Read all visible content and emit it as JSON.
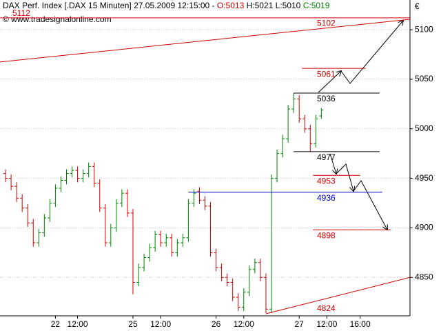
{
  "chart_data": {
    "type": "ohlc",
    "header": {
      "title": "DAX Perf. Index [.DAX  15 Minuten] 27.05.2009 12:15:00 -",
      "open": "O:5013",
      "high": "H:5021",
      "low": "L:5010",
      "close": "C:5019"
    },
    "copyright": "© www.tradesignalonline.com",
    "currency": "€",
    "up_color": "#008000",
    "down_color": "#cc0000",
    "open": [
      4955,
      4950,
      4942,
      4930,
      4920,
      4905,
      4885,
      4895,
      4910,
      4925,
      4940,
      4948,
      4955,
      4958,
      4950,
      4955,
      4962,
      4945,
      4920,
      4885,
      4900,
      4925,
      4935,
      4915,
      4845,
      4860,
      4870,
      4880,
      4893,
      4885,
      4890,
      4875,
      4885,
      4890,
      4925,
      4937,
      4928,
      4922,
      4875,
      4860,
      4850,
      4845,
      4830,
      4820,
      4835,
      4858,
      4865,
      4850,
      4818,
      4950,
      4975,
      4990,
      5020,
      5030,
      5010,
      5000,
      4985,
      5013
    ],
    "high": [
      4959,
      4954,
      4946,
      4934,
      4924,
      4909,
      4899,
      4914,
      4929,
      4944,
      4952,
      4959,
      4962,
      4962,
      4959,
      4966,
      4966,
      4949,
      4924,
      4904,
      4929,
      4939,
      4939,
      4919,
      4864,
      4874,
      4884,
      4897,
      4897,
      4894,
      4894,
      4889,
      4894,
      4929,
      4939,
      4941,
      4932,
      4926,
      4879,
      4864,
      4854,
      4849,
      4834,
      4839,
      4862,
      4869,
      4869,
      4854,
      4954,
      4979,
      4994,
      5024,
      5036,
      5034,
      5014,
      5004,
      5014,
      5021
    ],
    "low": [
      4946,
      4938,
      4926,
      4916,
      4901,
      4881,
      4881,
      4891,
      4906,
      4921,
      4936,
      4944,
      4951,
      4946,
      4946,
      4951,
      4941,
      4916,
      4881,
      4881,
      4896,
      4921,
      4911,
      4833,
      4841,
      4856,
      4866,
      4876,
      4881,
      4881,
      4871,
      4871,
      4881,
      4886,
      4921,
      4924,
      4918,
      4871,
      4856,
      4846,
      4841,
      4826,
      4816,
      4816,
      4831,
      4854,
      4846,
      4814,
      4814,
      4946,
      4971,
      4986,
      5016,
      5006,
      4996,
      4977,
      4981,
      5010
    ],
    "close": [
      4950,
      4942,
      4930,
      4920,
      4905,
      4885,
      4895,
      4910,
      4925,
      4940,
      4948,
      4955,
      4958,
      4950,
      4955,
      4962,
      4945,
      4920,
      4885,
      4900,
      4925,
      4935,
      4915,
      4845,
      4860,
      4870,
      4880,
      4893,
      4885,
      4890,
      4875,
      4885,
      4890,
      4925,
      4935,
      4928,
      4922,
      4875,
      4860,
      4850,
      4845,
      4830,
      4820,
      4835,
      4858,
      4865,
      4850,
      4818,
      4950,
      4975,
      4990,
      5020,
      5030,
      5010,
      5000,
      4985,
      5010,
      5019
    ],
    "xlim": [
      -1,
      73
    ],
    "xticks": [
      {
        "value": 9,
        "label": "22"
      },
      {
        "value": 13,
        "label": "12:00"
      },
      {
        "value": 23,
        "label": "25"
      },
      {
        "value": 28,
        "label": "12:00"
      },
      {
        "value": 38,
        "label": "26"
      },
      {
        "value": 43,
        "label": "12:00"
      },
      {
        "value": 53,
        "label": "27"
      },
      {
        "value": 58,
        "label": "12:00"
      },
      {
        "value": 64,
        "label": "16:00"
      }
    ],
    "ylim": [
      4813.3,
      5130
    ],
    "yticks": [
      4850,
      4900,
      4950,
      5000,
      5050,
      5100
    ],
    "grid": true,
    "levels": [
      {
        "value": 5112,
        "from": -1,
        "to": 73,
        "color": "#cc0000"
      },
      {
        "value": 5061,
        "from": 53.5,
        "to": 65,
        "color": "#cc0000"
      },
      {
        "value": 5036,
        "from": 52,
        "to": 67.5,
        "color": "#000000"
      },
      {
        "value": 4977,
        "from": 52,
        "to": 67.5,
        "color": "#000000"
      },
      {
        "value": 4953,
        "from": 55.5,
        "to": 64,
        "color": "#cc0000"
      },
      {
        "value": 4936,
        "from": 33,
        "to": 68,
        "color": "#0000cc"
      },
      {
        "value": 4898,
        "from": 55.5,
        "to": 69.5,
        "color": "#cc0000"
      }
    ],
    "trendlines": [
      {
        "label": 5102,
        "from": [
          -1,
          5067.4
        ],
        "to": [
          73,
          5110.5
        ],
        "color": "#cc0000"
      },
      {
        "label": 4824,
        "from": [
          47,
          4813.3
        ],
        "to": [
          73,
          4850
        ],
        "color": "#cc0000"
      }
    ]
  }
}
